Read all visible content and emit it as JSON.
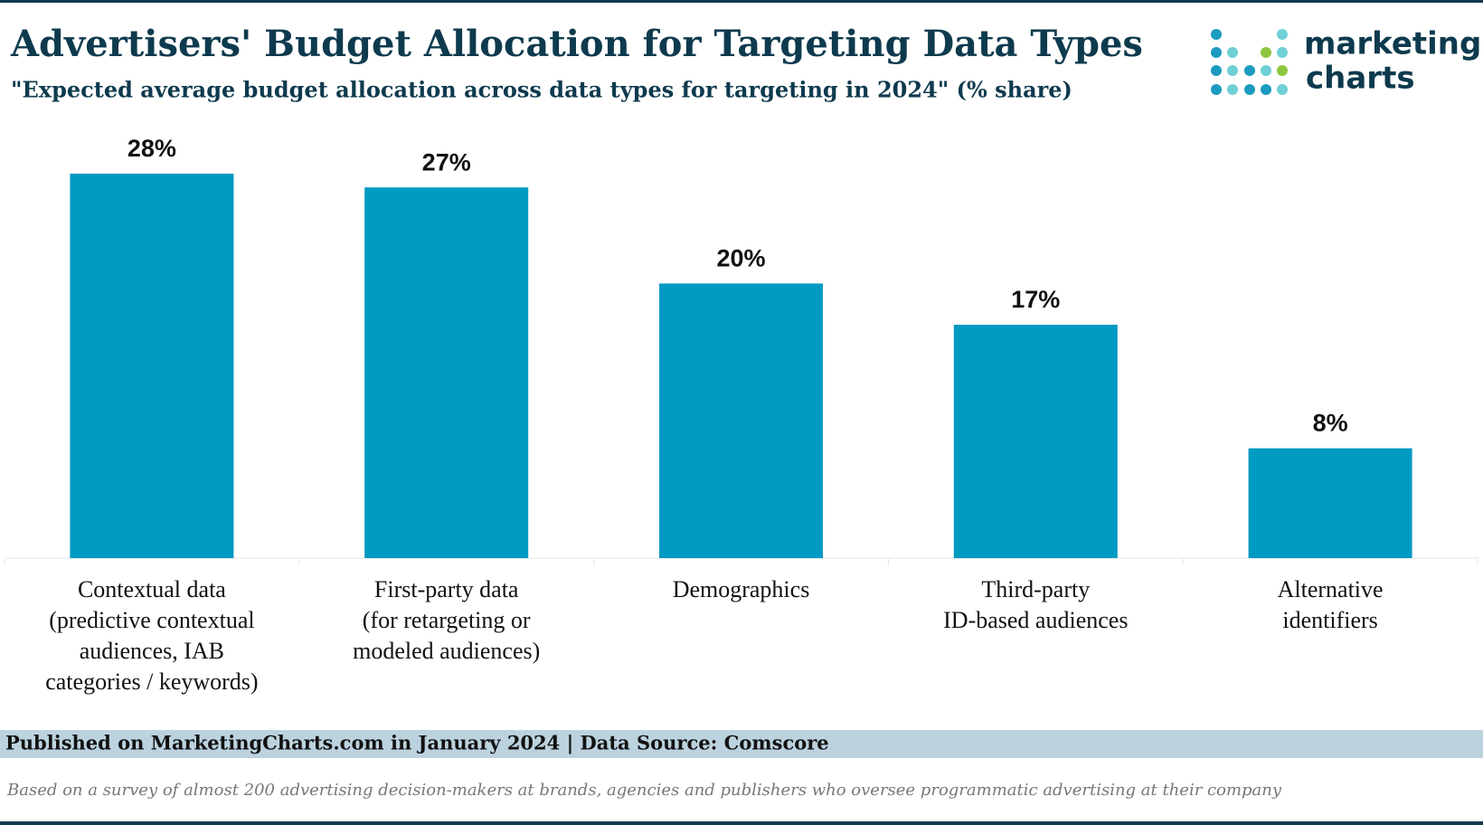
{
  "chart_data": {
    "type": "bar",
    "title": "Advertisers' Budget Allocation for Targeting Data Types",
    "subtitle": "\"Expected average budget allocation across data types for targeting in 2024\" (% share)",
    "categories": [
      [
        "Contextual data",
        "(predictive contextual",
        "audiences, IAB",
        "categories / keywords)"
      ],
      [
        "First-party data",
        "(for retargeting or",
        "modeled audiences)"
      ],
      [
        "Demographics"
      ],
      [
        "Third-party",
        "ID-based audiences"
      ],
      [
        "Alternative",
        "identifiers"
      ]
    ],
    "values": [
      28,
      27,
      20,
      17,
      8
    ],
    "value_labels": [
      "28%",
      "27%",
      "20%",
      "17%",
      "8%"
    ],
    "color": "#009ac2",
    "source": "Published on MarketingCharts.com in January 2024 | Data Source: Comscore",
    "note": "Based on a survey of almost 200 advertising decision-makers at brands, agencies and publishers who oversee programmatic advertising at their company",
    "logo": [
      "marketing",
      "charts"
    ]
  }
}
